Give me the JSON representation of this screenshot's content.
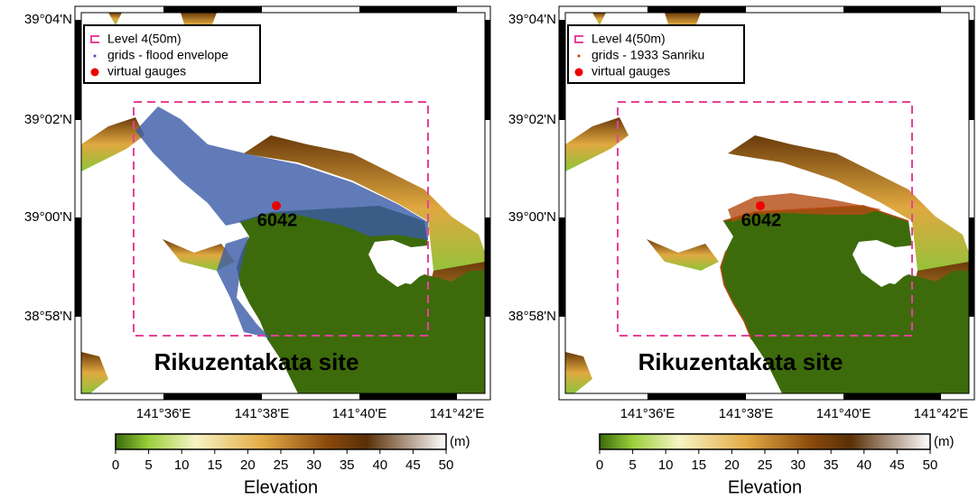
{
  "panels": [
    {
      "legend": [
        "Level 4(50m)",
        "grids - flood envelope",
        "virtual gauges"
      ],
      "gauge_label": "6042",
      "site_label": "Rikuzentakata site",
      "lat_labels": [
        "39°04'N",
        "39°02'N",
        "39°00'N",
        "38°58'N"
      ],
      "lon_labels": [
        "141°36'E",
        "141°38'E",
        "141°40'E",
        "141°42'E"
      ],
      "colorbar": {
        "ticks": [
          0,
          5,
          10,
          15,
          20,
          25,
          30,
          35,
          40,
          45,
          50
        ],
        "unit": "(m)",
        "title": "Elevation"
      }
    },
    {
      "legend": [
        "Level 4(50m)",
        "grids - 1933 Sanriku",
        "virtual gauges"
      ],
      "gauge_label": "6042",
      "site_label": "Rikuzentakata site",
      "lat_labels": [
        "39°04'N",
        "39°02'N",
        "39°00'N",
        "38°58'N"
      ],
      "lon_labels": [
        "141°36'E",
        "141°38'E",
        "141°40'E",
        "141°42'E"
      ],
      "colorbar": {
        "ticks": [
          0,
          5,
          10,
          15,
          20,
          25,
          30,
          35,
          40,
          45,
          50
        ],
        "unit": "(m)",
        "title": "Elevation"
      }
    }
  ]
}
